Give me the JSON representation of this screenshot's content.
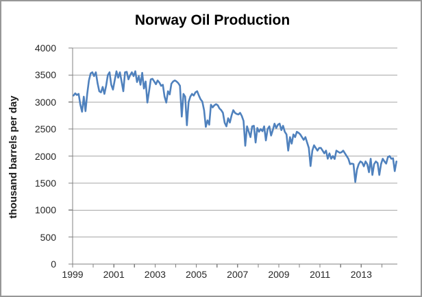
{
  "window": {
    "background": "#ffffff",
    "border_color": "#979797"
  },
  "chart_data": {
    "type": "line",
    "title": "Norway Oil Production",
    "ylabel": "thousand barrels per day",
    "xlabel": "",
    "legend": "none",
    "grid": "horizontal",
    "frequency": "monthly",
    "x_start_year": 1999,
    "x_end_approx": "2014 (Sep)",
    "ylim": [
      0,
      4000
    ],
    "yticks": [
      0,
      500,
      1000,
      1500,
      2000,
      2500,
      3000,
      3500,
      4000
    ],
    "xtick_label_years": [
      1999,
      2001,
      2003,
      2005,
      2007,
      2009,
      2011,
      2013
    ],
    "line_color": "#4F81BD",
    "gridline_color": "#A6A6A6",
    "axis_color": "#808080",
    "text_color": "#262626",
    "values": [
      3120,
      3160,
      3130,
      3150,
      2950,
      2820,
      3100,
      2830,
      3150,
      3400,
      3530,
      3550,
      3480,
      3550,
      3350,
      3200,
      3180,
      3280,
      3150,
      3300,
      3500,
      3550,
      3320,
      3230,
      3400,
      3570,
      3450,
      3550,
      3380,
      3200,
      3550,
      3560,
      3420,
      3500,
      3550,
      3480,
      3570,
      3370,
      3480,
      3320,
      3540,
      3250,
      3380,
      2990,
      3200,
      3420,
      3430,
      3380,
      3330,
      3400,
      3360,
      3300,
      3320,
      3100,
      2990,
      3200,
      3140,
      3340,
      3380,
      3400,
      3380,
      3350,
      3300,
      2730,
      3150,
      3100,
      2570,
      3000,
      3100,
      3150,
      3120,
      3180,
      3200,
      3120,
      3050,
      3010,
      2850,
      2540,
      2660,
      2580,
      2950,
      2900,
      2940,
      2960,
      2940,
      2880,
      2850,
      2800,
      2615,
      2550,
      2700,
      2620,
      2750,
      2850,
      2800,
      2780,
      2770,
      2800,
      2740,
      2650,
      2190,
      2550,
      2450,
      2350,
      2550,
      2560,
      2250,
      2520,
      2450,
      2500,
      2460,
      2550,
      2290,
      2500,
      2550,
      2380,
      2480,
      2600,
      2520,
      2580,
      2600,
      2480,
      2560,
      2450,
      2400,
      2100,
      2350,
      2230,
      2400,
      2350,
      2450,
      2430,
      2400,
      2350,
      2300,
      2350,
      2250,
      2150,
      1815,
      2100,
      2200,
      2150,
      2100,
      2150,
      2150,
      2100,
      2050,
      2100,
      1950,
      2050,
      1950,
      2000,
      1945,
      2100,
      2080,
      2060,
      2070,
      2100,
      2050,
      2000,
      1950,
      1850,
      1860,
      1850,
      1520,
      1750,
      1850,
      1900,
      1880,
      1810,
      1900,
      1850,
      1700,
      1950,
      1650,
      1850,
      1900,
      1870,
      1650,
      1850,
      1950,
      1900,
      1860,
      1980,
      2000,
      1950,
      1960,
      1720,
      1900
    ]
  }
}
